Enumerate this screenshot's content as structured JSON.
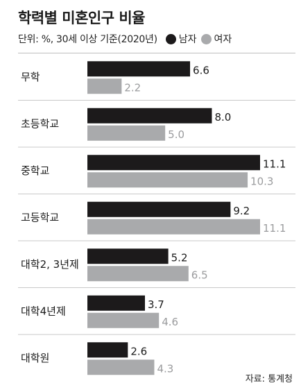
{
  "header": {
    "title": "학력별 미혼인구 비율",
    "unit_note": "단위: %,  30세 이상 기준(2020년)"
  },
  "legend": [
    {
      "name": "남자",
      "color": "#1c1a1b"
    },
    {
      "name": "여자",
      "color": "#a9aaac"
    }
  ],
  "source": "자료: 통계청",
  "chart_data": {
    "type": "bar",
    "orientation": "horizontal",
    "categories": [
      "무학",
      "초등학교",
      "중학교",
      "고등학교",
      "대학2, 3년제",
      "대학4년제",
      "대학원"
    ],
    "series": [
      {
        "name": "남자",
        "color": "#1c1a1b",
        "values": [
          6.6,
          8.0,
          11.1,
          9.2,
          5.2,
          3.7,
          2.6
        ],
        "labels": [
          "6.6",
          "8.0",
          "11.1",
          "9.2",
          "5.2",
          "3.7",
          "2.6"
        ]
      },
      {
        "name": "여자",
        "color": "#a9aaac",
        "values": [
          2.2,
          5.0,
          10.3,
          11.1,
          6.5,
          4.6,
          4.3
        ],
        "labels": [
          "2.2",
          "5.0",
          "10.3",
          "11.1",
          "6.5",
          "4.6",
          "4.3"
        ]
      }
    ],
    "title": "학력별 미혼인구 비율",
    "xlabel": "",
    "ylabel": "",
    "xlim": [
      0,
      11.1
    ],
    "grid": false,
    "legend_position": "top"
  }
}
